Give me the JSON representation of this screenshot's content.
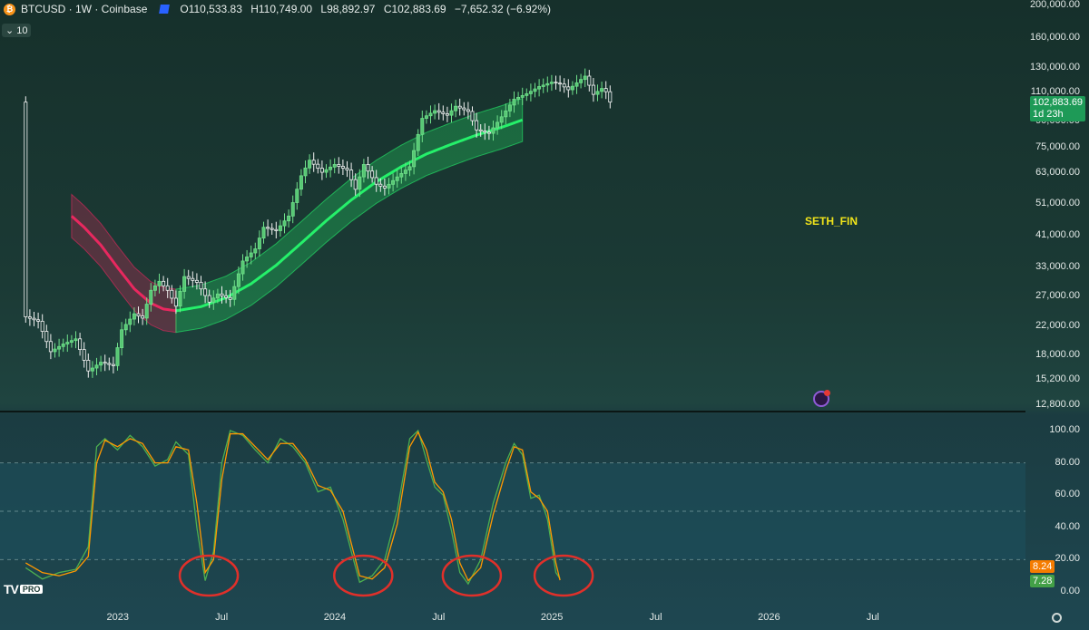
{
  "header": {
    "symbol": "BTCUSD · 1W · Coinbase",
    "open": "O110,533.83",
    "high": "H110,749.00",
    "low": "L98,892.97",
    "close": "C102,883.69",
    "change": "−7,652.32 (−6.92%)",
    "indicator_value": "10"
  },
  "watermark": "SETH_FIN",
  "badges": {
    "last_price": "102,883.69",
    "countdown": "1d 23h",
    "stoch_k": "8.24",
    "stoch_d": "7.28"
  },
  "colors": {
    "bull_candle": "#6fe08a",
    "bear_candle": "#f2f2f2",
    "bear_band": "#e8285f",
    "bull_band": "#25f06a",
    "stoch_k": "#4caf50",
    "stoch_d": "#ff9800",
    "circles": "#e0302a"
  },
  "chart_data": [
    {
      "type": "candlestick",
      "scale": "log",
      "y_ticks": [
        200000,
        160000,
        130000,
        110000,
        90000,
        75000,
        63000,
        51000,
        41000,
        33000,
        27000,
        22000,
        18000,
        15200,
        12800
      ],
      "y_tick_labels": [
        "200,000.00",
        "160,000.00",
        "130,000.00",
        "110,000.00",
        "90,000.00",
        "75,000.00",
        "63,000.00",
        "51,000.00",
        "41,000.00",
        "33,000.00",
        "27,000.00",
        "22,000.00",
        "18,000.00",
        "15,200.00",
        "12,800.00"
      ],
      "x_tick_labels": [
        "2023",
        "Jul",
        "2024",
        "Jul",
        "2025",
        "Jul",
        "2026",
        "Jul"
      ],
      "ylim": [
        12800,
        200000
      ],
      "last_close": 102883.69,
      "trend_band": {
        "bear_segment": [
          [
            -11,
            47000
          ],
          [
            -8,
            43500
          ],
          [
            -4,
            38500
          ],
          [
            0,
            33000
          ],
          [
            4,
            28500
          ],
          [
            8,
            25800
          ],
          [
            11,
            24800
          ],
          [
            14,
            24500
          ]
        ],
        "bull_segment": [
          [
            14,
            24500
          ],
          [
            20,
            25200
          ],
          [
            26,
            26800
          ],
          [
            32,
            29500
          ],
          [
            38,
            33500
          ],
          [
            44,
            39000
          ],
          [
            50,
            45500
          ],
          [
            56,
            52500
          ],
          [
            62,
            59500
          ],
          [
            68,
            66000
          ],
          [
            74,
            72000
          ],
          [
            80,
            77000
          ],
          [
            86,
            82000
          ],
          [
            92,
            86500
          ],
          [
            97,
            91000
          ]
        ],
        "band_ratio": 1.16
      },
      "anchors": [
        [
          -22,
          23500
        ],
        [
          -19,
          22800
        ],
        [
          -16,
          18500
        ],
        [
          -13,
          19500
        ],
        [
          -10,
          20200
        ],
        [
          -7,
          16200
        ],
        [
          -4,
          17200
        ],
        [
          -1,
          16800
        ],
        [
          1,
          21500
        ],
        [
          4,
          24000
        ],
        [
          6,
          23300
        ],
        [
          8,
          28200
        ],
        [
          10,
          30000
        ],
        [
          12,
          28200
        ],
        [
          14,
          25300
        ],
        [
          16,
          31000
        ],
        [
          19,
          29800
        ],
        [
          22,
          26000
        ],
        [
          24,
          27500
        ],
        [
          27,
          26500
        ],
        [
          30,
          34500
        ],
        [
          33,
          37500
        ],
        [
          35,
          43500
        ],
        [
          38,
          42500
        ],
        [
          41,
          47000
        ],
        [
          44,
          62000
        ],
        [
          46,
          69000
        ],
        [
          49,
          63500
        ],
        [
          52,
          67000
        ],
        [
          55,
          64500
        ],
        [
          57,
          56500
        ],
        [
          59,
          67000
        ],
        [
          62,
          58500
        ],
        [
          64,
          57000
        ],
        [
          67,
          61500
        ],
        [
          70,
          66000
        ],
        [
          73,
          92000
        ],
        [
          76,
          97000
        ],
        [
          79,
          94000
        ],
        [
          81,
          100000
        ],
        [
          84,
          96500
        ],
        [
          86,
          85000
        ],
        [
          89,
          83000
        ],
        [
          92,
          93000
        ],
        [
          95,
          105000
        ],
        [
          98,
          109000
        ],
        [
          101,
          114500
        ],
        [
          104,
          118000
        ],
        [
          106,
          116500
        ],
        [
          108,
          112000
        ],
        [
          110,
          117500
        ],
        [
          112,
          123000
        ],
        [
          114,
          108500
        ],
        [
          116,
          113000
        ],
        [
          117,
          110500
        ],
        [
          118,
          102883.69
        ]
      ]
    },
    {
      "type": "line",
      "indicator": "stochastic",
      "ylim": [
        0,
        100
      ],
      "y_ticks": [
        100,
        80,
        60,
        40,
        20,
        0
      ],
      "y_tick_labels": [
        "100.00",
        "80.00",
        "60.00",
        "40.00",
        "20.00",
        "0.00"
      ],
      "levels": [
        80,
        50,
        20
      ],
      "series": [
        {
          "values_anchor": [
            [
              -22,
              15
            ],
            [
              -18,
              8
            ],
            [
              -14,
              12
            ],
            [
              -10,
              14
            ],
            [
              -7,
              28
            ],
            [
              -5,
              90
            ],
            [
              -3,
              95
            ],
            [
              0,
              88
            ],
            [
              3,
              97
            ],
            [
              6,
              90
            ],
            [
              9,
              78
            ],
            [
              12,
              82
            ],
            [
              14,
              93
            ],
            [
              17,
              85
            ],
            [
              19,
              40
            ],
            [
              21,
              7
            ],
            [
              23,
              25
            ],
            [
              25,
              80
            ],
            [
              27,
              100
            ],
            [
              30,
              97
            ],
            [
              33,
              88
            ],
            [
              36,
              80
            ],
            [
              39,
              95
            ],
            [
              42,
              90
            ],
            [
              45,
              80
            ],
            [
              48,
              62
            ],
            [
              51,
              65
            ],
            [
              54,
              45
            ],
            [
              56,
              25
            ],
            [
              58,
              6
            ],
            [
              61,
              10
            ],
            [
              64,
              20
            ],
            [
              67,
              50
            ],
            [
              70,
              95
            ],
            [
              72,
              100
            ],
            [
              74,
              82
            ],
            [
              76,
              65
            ],
            [
              78,
              60
            ],
            [
              80,
              38
            ],
            [
              82,
              12
            ],
            [
              84,
              5
            ],
            [
              87,
              20
            ],
            [
              90,
              55
            ],
            [
              93,
              80
            ],
            [
              95,
              92
            ],
            [
              97,
              85
            ],
            [
              99,
              58
            ],
            [
              101,
              60
            ],
            [
              103,
              45
            ],
            [
              105,
              12
            ],
            [
              106,
              8.24
            ]
          ]
        },
        {
          "values_anchor": [
            [
              -22,
              18
            ],
            [
              -18,
              12
            ],
            [
              -14,
              10
            ],
            [
              -10,
              13
            ],
            [
              -7,
              22
            ],
            [
              -5,
              80
            ],
            [
              -3,
              94
            ],
            [
              0,
              90
            ],
            [
              3,
              95
            ],
            [
              6,
              92
            ],
            [
              9,
              80
            ],
            [
              12,
              80
            ],
            [
              14,
              90
            ],
            [
              17,
              88
            ],
            [
              19,
              55
            ],
            [
              21,
              12
            ],
            [
              23,
              20
            ],
            [
              25,
              70
            ],
            [
              27,
              98
            ],
            [
              30,
              98
            ],
            [
              33,
              90
            ],
            [
              36,
              82
            ],
            [
              39,
              92
            ],
            [
              42,
              92
            ],
            [
              45,
              82
            ],
            [
              48,
              66
            ],
            [
              51,
              63
            ],
            [
              54,
              50
            ],
            [
              56,
              30
            ],
            [
              58,
              10
            ],
            [
              61,
              8
            ],
            [
              64,
              15
            ],
            [
              67,
              42
            ],
            [
              70,
              90
            ],
            [
              72,
              99
            ],
            [
              74,
              88
            ],
            [
              76,
              68
            ],
            [
              78,
              62
            ],
            [
              80,
              45
            ],
            [
              82,
              18
            ],
            [
              84,
              7
            ],
            [
              87,
              15
            ],
            [
              90,
              48
            ],
            [
              93,
              75
            ],
            [
              95,
              90
            ],
            [
              97,
              88
            ],
            [
              99,
              62
            ],
            [
              101,
              58
            ],
            [
              103,
              50
            ],
            [
              105,
              18
            ],
            [
              106,
              7.28
            ]
          ]
        }
      ],
      "highlight_weeks": [
        21,
        58,
        84,
        106
      ]
    }
  ]
}
